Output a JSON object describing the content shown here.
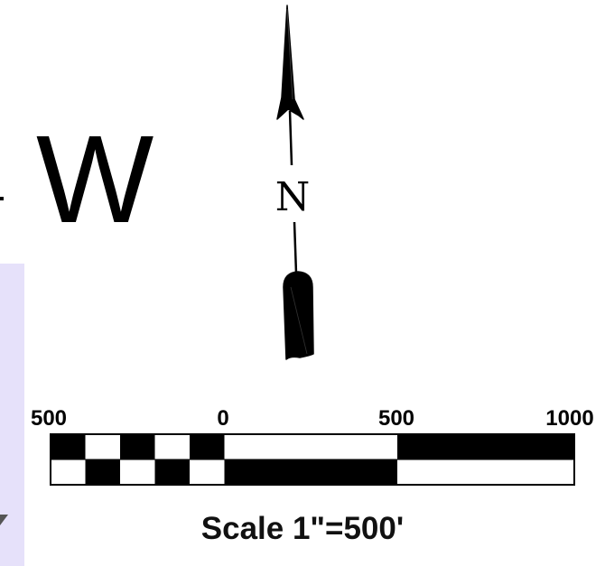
{
  "map": {
    "compass_letter": "W",
    "north_label": "N",
    "scale": {
      "ticks": [
        "500",
        "0",
        "500",
        "1000"
      ],
      "caption": "Scale 1\"=500'"
    }
  }
}
